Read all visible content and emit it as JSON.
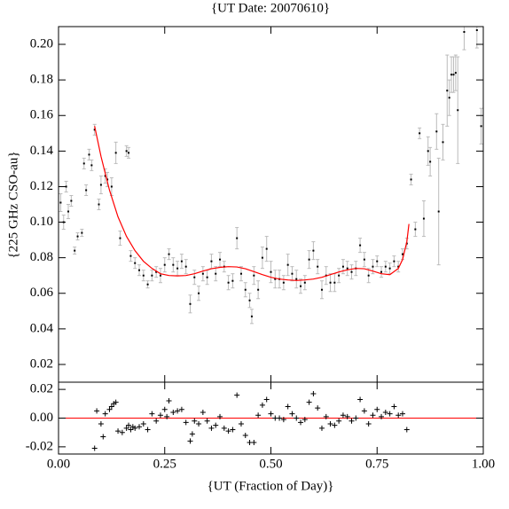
{
  "chart_data": [
    {
      "type": "scatter",
      "title": "{UT Date: 20070610}",
      "ylabel": "{225 GHz CSO-au}",
      "xlim": [
        0,
        1
      ],
      "ylim": [
        0.01,
        0.21
      ],
      "xticks": [
        0,
        0.25,
        0.5,
        0.75,
        1
      ],
      "yticks": [
        {
          "value": 0.02,
          "label": "0.02"
        },
        {
          "value": 0.04,
          "label": "0.04"
        },
        {
          "value": 0.06,
          "label": "0.06"
        },
        {
          "value": 0.08,
          "label": "0.08"
        },
        {
          "value": 0.1,
          "label": "0.10"
        },
        {
          "value": 0.12,
          "label": "0.12"
        },
        {
          "value": 0.14,
          "label": "0.14"
        },
        {
          "value": 0.16,
          "label": "0.16"
        },
        {
          "value": 0.18,
          "label": "0.18"
        },
        {
          "value": 0.2,
          "label": "0.20"
        }
      ],
      "series": [
        {
          "type": "scatter",
          "marker": "dot",
          "color": "#000000",
          "error_color": "#bbbbbb",
          "x": [
            0.005,
            0.012,
            0.018,
            0.023,
            0.03,
            0.038,
            0.045,
            0.055,
            0.06,
            0.065,
            0.072,
            0.078,
            0.085,
            0.095,
            0.1,
            0.11,
            0.115,
            0.125,
            0.135,
            0.145,
            0.16,
            0.165,
            0.17,
            0.18,
            0.19,
            0.2,
            0.21,
            0.22,
            0.23,
            0.24,
            0.25,
            0.26,
            0.27,
            0.28,
            0.29,
            0.3,
            0.31,
            0.32,
            0.33,
            0.34,
            0.35,
            0.36,
            0.37,
            0.38,
            0.39,
            0.4,
            0.41,
            0.42,
            0.43,
            0.44,
            0.45,
            0.455,
            0.46,
            0.47,
            0.48,
            0.49,
            0.5,
            0.51,
            0.52,
            0.53,
            0.54,
            0.55,
            0.56,
            0.57,
            0.58,
            0.59,
            0.6,
            0.61,
            0.62,
            0.63,
            0.64,
            0.65,
            0.66,
            0.67,
            0.68,
            0.69,
            0.7,
            0.71,
            0.72,
            0.73,
            0.74,
            0.75,
            0.76,
            0.77,
            0.78,
            0.79,
            0.8,
            0.81,
            0.82,
            0.83,
            0.84,
            0.85,
            0.86,
            0.87,
            0.875,
            0.89,
            0.895,
            0.905,
            0.915,
            0.92,
            0.925,
            0.93,
            0.935,
            0.94,
            0.955,
            0.985,
            0.995
          ],
          "values": [
            0.111,
            0.1,
            0.12,
            0.106,
            0.112,
            0.084,
            0.092,
            0.094,
            0.133,
            0.118,
            0.138,
            0.132,
            0.152,
            0.11,
            0.121,
            0.126,
            0.124,
            0.12,
            0.139,
            0.091,
            0.14,
            0.139,
            0.081,
            0.077,
            0.073,
            0.07,
            0.065,
            0.07,
            0.072,
            0.07,
            0.076,
            0.082,
            0.076,
            0.074,
            0.078,
            0.075,
            0.054,
            0.069,
            0.06,
            0.071,
            0.069,
            0.078,
            0.071,
            0.079,
            0.075,
            0.066,
            0.067,
            0.091,
            0.071,
            0.062,
            0.056,
            0.047,
            0.07,
            0.062,
            0.08,
            0.085,
            0.072,
            0.068,
            0.068,
            0.066,
            0.076,
            0.071,
            0.068,
            0.064,
            0.066,
            0.079,
            0.084,
            0.075,
            0.062,
            0.07,
            0.066,
            0.066,
            0.07,
            0.075,
            0.074,
            0.072,
            0.074,
            0.087,
            0.079,
            0.07,
            0.075,
            0.078,
            0.072,
            0.075,
            0.074,
            0.078,
            0.075,
            0.082,
            0.088,
            0.124,
            0.096,
            0.15,
            0.102,
            0.14,
            0.134,
            0.151,
            0.106,
            0.145,
            0.174,
            0.17,
            0.183,
            0.183,
            0.184,
            0.163,
            0.207,
            0.208,
            0.154
          ],
          "errors": [
            0.005,
            0.004,
            0.003,
            0.004,
            0.003,
            0.002,
            0.002,
            0.002,
            0.003,
            0.003,
            0.003,
            0.003,
            0.003,
            0.003,
            0.005,
            0.004,
            0.004,
            0.005,
            0.006,
            0.004,
            0.003,
            0.003,
            0.003,
            0.003,
            0.003,
            0.003,
            0.002,
            0.003,
            0.003,
            0.004,
            0.004,
            0.003,
            0.004,
            0.004,
            0.004,
            0.004,
            0.005,
            0.004,
            0.004,
            0.004,
            0.004,
            0.004,
            0.004,
            0.004,
            0.003,
            0.004,
            0.004,
            0.006,
            0.004,
            0.004,
            0.004,
            0.004,
            0.005,
            0.005,
            0.006,
            0.007,
            0.006,
            0.005,
            0.005,
            0.004,
            0.006,
            0.004,
            0.005,
            0.004,
            0.004,
            0.005,
            0.005,
            0.004,
            0.005,
            0.005,
            0.005,
            0.005,
            0.004,
            0.004,
            0.004,
            0.004,
            0.004,
            0.004,
            0.004,
            0.004,
            0.004,
            0.003,
            0.003,
            0.003,
            0.003,
            0.003,
            0.003,
            0.003,
            0.003,
            0.003,
            0.004,
            0.003,
            0.01,
            0.008,
            0.008,
            0.01,
            0.03,
            0.01,
            0.02,
            0.01,
            0.01,
            0.01,
            0.01,
            0.03,
            0.01,
            0.01,
            0.01
          ]
        },
        {
          "type": "line",
          "color": "#ff0000",
          "x": [
            0.085,
            0.1,
            0.12,
            0.14,
            0.16,
            0.18,
            0.2,
            0.22,
            0.24,
            0.26,
            0.28,
            0.3,
            0.32,
            0.34,
            0.36,
            0.38,
            0.4,
            0.42,
            0.44,
            0.46,
            0.48,
            0.5,
            0.52,
            0.54,
            0.56,
            0.58,
            0.6,
            0.62,
            0.64,
            0.66,
            0.68,
            0.7,
            0.72,
            0.74,
            0.76,
            0.78,
            0.8,
            0.81,
            0.82,
            0.825
          ],
          "values": [
            0.154,
            0.137,
            0.118,
            0.103,
            0.092,
            0.084,
            0.078,
            0.074,
            0.071,
            0.07,
            0.0698,
            0.07,
            0.071,
            0.0725,
            0.0738,
            0.0746,
            0.075,
            0.0748,
            0.0738,
            0.0722,
            0.0705,
            0.069,
            0.068,
            0.0675,
            0.0672,
            0.0675,
            0.068,
            0.069,
            0.0705,
            0.072,
            0.0732,
            0.074,
            0.0738,
            0.0725,
            0.071,
            0.0705,
            0.074,
            0.079,
            0.089,
            0.099
          ]
        }
      ]
    },
    {
      "type": "scatter",
      "xlabel": "{UT (Fraction of Day)}",
      "xlim": [
        0,
        1
      ],
      "ylim": [
        -0.025,
        0.025
      ],
      "xticks": [
        {
          "value": 0,
          "label": "0.00"
        },
        {
          "value": 0.25,
          "label": "0.25"
        },
        {
          "value": 0.5,
          "label": "0.50"
        },
        {
          "value": 0.75,
          "label": "0.75"
        },
        {
          "value": 1,
          "label": "1.00"
        }
      ],
      "yticks": [
        {
          "value": -0.02,
          "label": "-0.02"
        },
        {
          "value": 0,
          "label": "0.00"
        },
        {
          "value": 0.02,
          "label": "0.02"
        }
      ],
      "reference_line": {
        "value": 0,
        "color": "#ff0000"
      },
      "series": [
        {
          "type": "scatter",
          "marker": "plus",
          "color": "#000000",
          "x": [
            0.085,
            0.09,
            0.1,
            0.105,
            0.11,
            0.12,
            0.125,
            0.13,
            0.135,
            0.14,
            0.15,
            0.16,
            0.165,
            0.17,
            0.175,
            0.18,
            0.19,
            0.2,
            0.21,
            0.22,
            0.23,
            0.24,
            0.25,
            0.255,
            0.26,
            0.27,
            0.28,
            0.29,
            0.3,
            0.31,
            0.315,
            0.32,
            0.33,
            0.34,
            0.35,
            0.36,
            0.37,
            0.38,
            0.39,
            0.4,
            0.41,
            0.42,
            0.43,
            0.44,
            0.45,
            0.46,
            0.47,
            0.48,
            0.49,
            0.5,
            0.51,
            0.52,
            0.53,
            0.54,
            0.55,
            0.56,
            0.57,
            0.58,
            0.59,
            0.6,
            0.61,
            0.62,
            0.63,
            0.64,
            0.65,
            0.66,
            0.67,
            0.68,
            0.69,
            0.7,
            0.71,
            0.72,
            0.73,
            0.74,
            0.75,
            0.76,
            0.77,
            0.78,
            0.79,
            0.8,
            0.81,
            0.82
          ],
          "values": [
            -0.021,
            0.005,
            -0.004,
            -0.013,
            0.003,
            0.006,
            0.008,
            0.01,
            0.011,
            -0.009,
            -0.01,
            -0.007,
            -0.005,
            -0.008,
            -0.006,
            -0.007,
            -0.006,
            -0.004,
            -0.008,
            0.003,
            -0.002,
            0.002,
            0.006,
            0.001,
            0.012,
            0.004,
            0.005,
            0.006,
            -0.003,
            -0.016,
            -0.011,
            -0.002,
            -0.004,
            0.004,
            -0.002,
            -0.007,
            -0.005,
            0.001,
            -0.007,
            -0.009,
            -0.008,
            0.016,
            -0.004,
            -0.012,
            -0.017,
            -0.017,
            0.002,
            0.009,
            0.013,
            0.003,
            0,
            0,
            -0.001,
            0.008,
            0.003,
            0,
            -0.003,
            -0.001,
            0.011,
            0.017,
            0.007,
            -0.007,
            0.001,
            -0.004,
            -0.005,
            -0.002,
            0.002,
            0.001,
            -0.002,
            0,
            0.013,
            0.005,
            -0.004,
            0.002,
            0.006,
            0.001,
            0.004,
            0.003,
            0.008,
            0.002,
            0.003,
            -0.008
          ]
        }
      ]
    }
  ]
}
